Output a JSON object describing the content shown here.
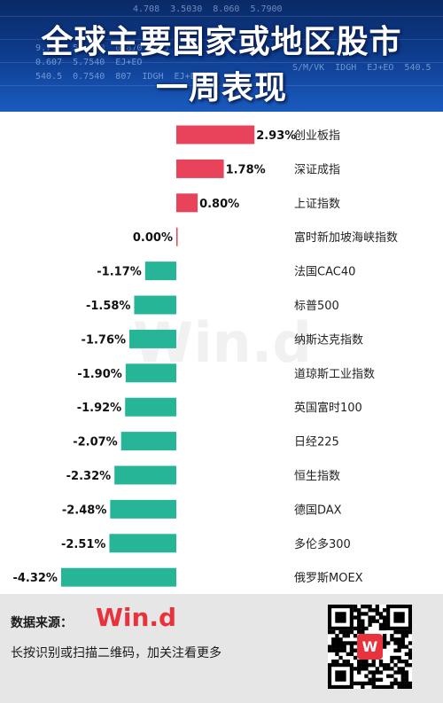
{
  "header": {
    "title_line1": "全球主要国家或地区股市",
    "title_line2": "一周表现",
    "ticker_lines": [
      "4.708  3.5030  8.060  5.7900",
      "9.7.5  57.030  0.870  1.5",
      "0.607  5.7540  EJ+EO",
      "540.5  0.7540  807  IDGH  EJ+EO",
      "S/M/VK  IDGH  EJ+EO  540.5"
    ]
  },
  "chart_data": {
    "type": "bar",
    "orientation": "horizontal",
    "categories": [
      "创业板指",
      "深证成指",
      "上证指数",
      "富时新加坡海峡指数",
      "法国CAC40",
      "标普500",
      "纳斯达克指数",
      "道琼斯工业指数",
      "英国富时100",
      "日经225",
      "恒生指数",
      "德国DAX",
      "多伦多300",
      "俄罗斯MOEX"
    ],
    "values": [
      2.93,
      1.78,
      0.8,
      0.0,
      -1.17,
      -1.58,
      -1.76,
      -1.9,
      -1.92,
      -2.07,
      -2.32,
      -2.48,
      -2.51,
      -4.32
    ],
    "value_labels": [
      "2.93%",
      "1.78%",
      "0.80%",
      "0.00%",
      "-1.17%",
      "-1.58%",
      "-1.76%",
      "-1.90%",
      "-1.92%",
      "-2.07%",
      "-2.32%",
      "-2.48%",
      "-2.51%",
      "-4.32%"
    ],
    "unit": "%",
    "xlim": [
      -4.32,
      2.93
    ],
    "colors": {
      "positive": "#e8435a",
      "negative": "#27b598"
    },
    "grid": false,
    "legend": "none"
  },
  "watermark": "Win.d",
  "footer": {
    "source_label": "数据来源：",
    "brand": "Win.d",
    "scan_text": "长按识别或扫描二维码，加关注看更多",
    "qr_badge_letter": "W",
    "brand_color": "#e8323c"
  }
}
